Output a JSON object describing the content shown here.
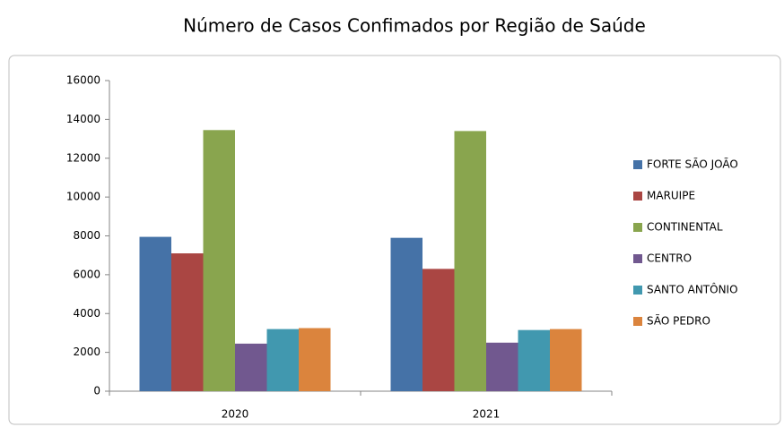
{
  "chart_data": {
    "type": "bar",
    "title": "Número de Casos Confimados por Região de Saúde",
    "categories": [
      "2020",
      "2021"
    ],
    "series": [
      {
        "name": "FORTE SÃO JOÃO",
        "color": "#4572a7",
        "values": [
          7950,
          7900
        ]
      },
      {
        "name": "MARUIPE",
        "color": "#aa4643",
        "values": [
          7100,
          6300
        ]
      },
      {
        "name": "CONTINENTAL",
        "color": "#89a54e",
        "values": [
          13450,
          13400
        ]
      },
      {
        "name": "CENTRO",
        "color": "#71588f",
        "values": [
          2450,
          2500
        ]
      },
      {
        "name": "SANTO ANTÔNIO",
        "color": "#4198af",
        "values": [
          3200,
          3150
        ]
      },
      {
        "name": "SÃO PEDRO",
        "color": "#db843d",
        "values": [
          3250,
          3200
        ]
      }
    ],
    "ylim": [
      0,
      16000
    ],
    "yticks": [
      0,
      2000,
      4000,
      6000,
      8000,
      10000,
      12000,
      14000,
      16000
    ],
    "grid": false,
    "legend": "right"
  }
}
